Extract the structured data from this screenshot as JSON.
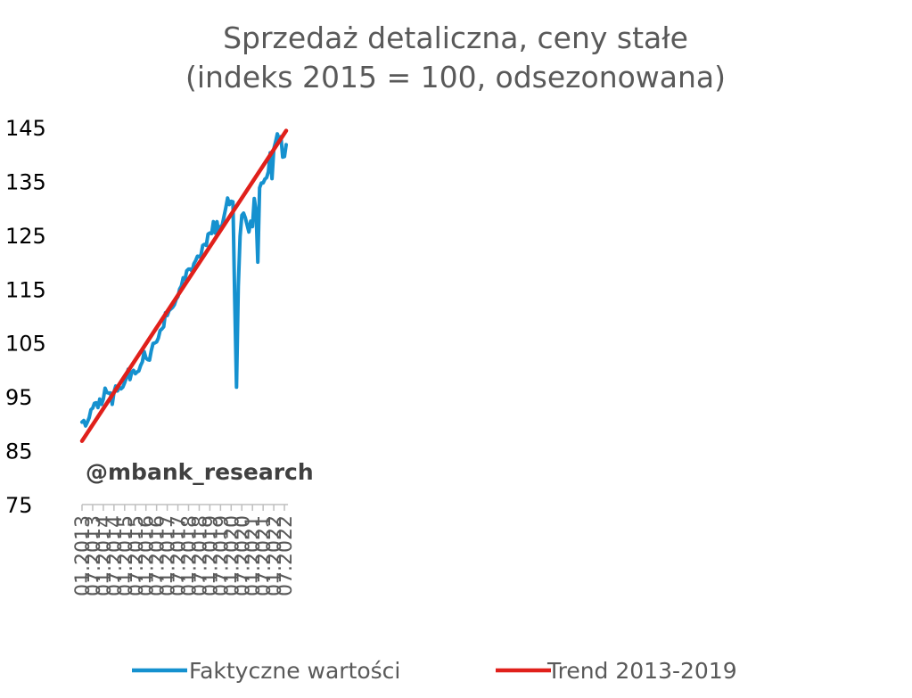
{
  "chart_data": {
    "type": "line",
    "title": "Sprzedaż detaliczna, ceny stałe",
    "subtitle": "(indeks 2015 = 100, odsezonowana)",
    "watermark": "@mbank_research",
    "ylim": [
      75,
      145
    ],
    "yticks": [
      "75",
      "85",
      "95",
      "105",
      "115",
      "125",
      "135",
      "145"
    ],
    "xticks": [
      "01.2013",
      "07.2013",
      "01.2014",
      "07.2014",
      "01.2015",
      "07.2015",
      "01.2016",
      "07.2016",
      "01.2017",
      "07.2017",
      "01.2018",
      "07.2018",
      "01.2019",
      "07.2019",
      "01.2020",
      "07.2020",
      "01.2021",
      "07.2021",
      "01.2022",
      "07.2022"
    ],
    "legend_position": "bottom",
    "grid": false,
    "series": [
      {
        "name": "Faktyczne wartości",
        "color": "#1591CF",
        "start": "01.2013",
        "values": [
          90.3,
          90.6,
          89.6,
          90.3,
          91.1,
          92.6,
          92.9,
          93.8,
          93.9,
          93.0,
          94.6,
          93.6,
          94.6,
          96.6,
          95.8,
          95.7,
          95.7,
          93.6,
          95.9,
          97.0,
          96.1,
          96.8,
          96.5,
          96.8,
          97.6,
          98.6,
          100.1,
          98.2,
          99.6,
          99.9,
          99.3,
          99.6,
          99.8,
          100.8,
          101.5,
          103.4,
          102.2,
          101.9,
          101.8,
          103.6,
          104.9,
          105.0,
          105.2,
          105.9,
          107.3,
          107.6,
          108.0,
          110.6,
          110.1,
          111.0,
          111.3,
          111.6,
          112.1,
          113.1,
          113.6,
          115.0,
          115.6,
          117.1,
          116.8,
          118.4,
          118.7,
          118.7,
          118.3,
          119.7,
          120.3,
          121.1,
          121.0,
          121.3,
          123.1,
          123.3,
          123.1,
          125.2,
          125.4,
          125.3,
          127.5,
          125.4,
          127.5,
          125.3,
          126.6,
          126.9,
          128.5,
          130.1,
          131.9,
          130.7,
          131.3,
          131.2,
          113.0,
          96.8,
          115.5,
          124.8,
          128.7,
          129.1,
          128.2,
          126.9,
          125.6,
          127.6,
          126.6,
          131.8,
          129.5,
          120.0,
          133.8,
          134.7,
          134.7,
          135.4,
          135.7,
          136.8,
          140.3,
          135.5,
          141.0,
          142.3,
          143.8,
          142.6,
          143.3,
          139.5,
          139.6,
          141.8
        ]
      },
      {
        "name": "Trend 2013-2019",
        "color": "#E0201B",
        "start": "01.2013",
        "x": [
          "01.2013",
          "08.2022"
        ],
        "values": [
          86.8,
          144.4
        ]
      }
    ]
  }
}
